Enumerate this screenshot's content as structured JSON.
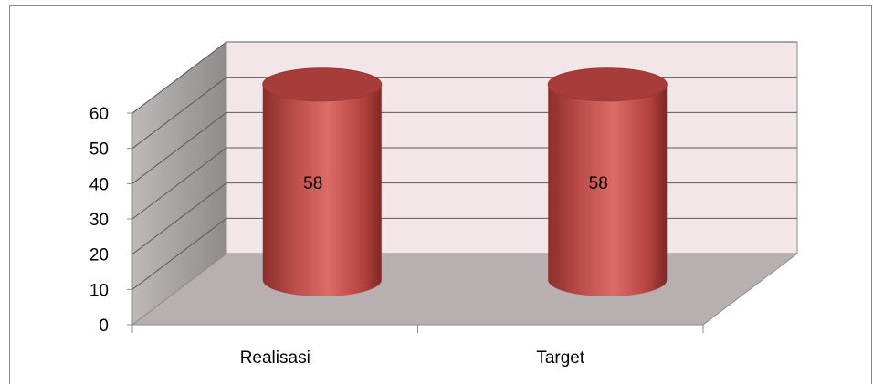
{
  "chart_data": {
    "type": "bar",
    "style": "3d-cylinder",
    "categories": [
      "Realisasi",
      "Target"
    ],
    "values": [
      58,
      58
    ],
    "data_labels": [
      "58",
      "58"
    ],
    "y_ticks": [
      "0",
      "10",
      "20",
      "30",
      "40",
      "50",
      "60"
    ],
    "ylim": [
      0,
      60
    ],
    "grid": true,
    "legend": "none",
    "title": "",
    "xlabel": "",
    "ylabel": "",
    "colors": {
      "bar": "#c0504d",
      "bar_highlight": "#dd6b67",
      "bar_shadow": "#8c2e2b",
      "bar_top": "#a73d3a",
      "back_wall": "#f3e6e8",
      "side_wall": "#a6a2a2",
      "floor": "#b8b0b0",
      "gridline": "#5a5a5a"
    }
  }
}
